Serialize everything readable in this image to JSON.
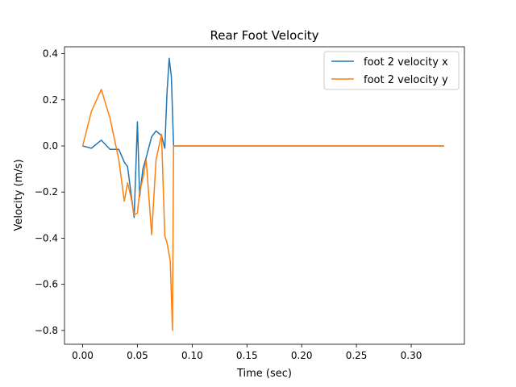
{
  "chart_data": {
    "type": "line",
    "title": "Rear Foot Velocity",
    "xlabel": "Time (sec)",
    "ylabel": "Velocity (m/s)",
    "xlim": [
      -0.0166,
      0.3486
    ],
    "ylim": [
      -0.86,
      0.43
    ],
    "xticks": [
      0.0,
      0.05,
      0.1,
      0.15,
      0.2,
      0.25,
      0.3
    ],
    "xtick_labels": [
      "0.00",
      "0.05",
      "0.10",
      "0.15",
      "0.20",
      "0.25",
      "0.30"
    ],
    "yticks": [
      -0.8,
      -0.6,
      -0.4,
      -0.2,
      0.0,
      0.2,
      0.4
    ],
    "ytick_labels": [
      "−0.8",
      "−0.6",
      "−0.4",
      "−0.2",
      "0.0",
      "0.2",
      "0.4"
    ],
    "grid": false,
    "legend_position": "top-right",
    "series": [
      {
        "name": "foot 2 velocity x",
        "color": "#1f77b4",
        "x": [
          0.0,
          0.008,
          0.017,
          0.025,
          0.033,
          0.038,
          0.041,
          0.044,
          0.047,
          0.05,
          0.052,
          0.055,
          0.058,
          0.063,
          0.067,
          0.072,
          0.075,
          0.077,
          0.079,
          0.081,
          0.083,
          0.085,
          0.33
        ],
        "y": [
          0.0,
          -0.01,
          0.025,
          -0.015,
          -0.015,
          -0.07,
          -0.09,
          -0.2,
          -0.31,
          0.105,
          -0.22,
          -0.1,
          -0.05,
          0.04,
          0.065,
          0.045,
          -0.01,
          0.23,
          0.38,
          0.3,
          0.0,
          0.0,
          0.0
        ]
      },
      {
        "name": "foot 2 velocity y",
        "color": "#ff7f0e",
        "x": [
          0.0,
          0.008,
          0.017,
          0.025,
          0.033,
          0.038,
          0.041,
          0.044,
          0.047,
          0.05,
          0.052,
          0.055,
          0.058,
          0.063,
          0.067,
          0.072,
          0.075,
          0.077,
          0.08,
          0.082,
          0.083,
          0.085,
          0.33
        ],
        "y": [
          0.0,
          0.15,
          0.245,
          0.12,
          -0.06,
          -0.24,
          -0.16,
          -0.22,
          -0.3,
          -0.29,
          -0.2,
          -0.14,
          -0.06,
          -0.385,
          -0.06,
          0.05,
          -0.39,
          -0.42,
          -0.5,
          -0.8,
          0.0,
          0.0,
          0.0
        ]
      }
    ]
  }
}
